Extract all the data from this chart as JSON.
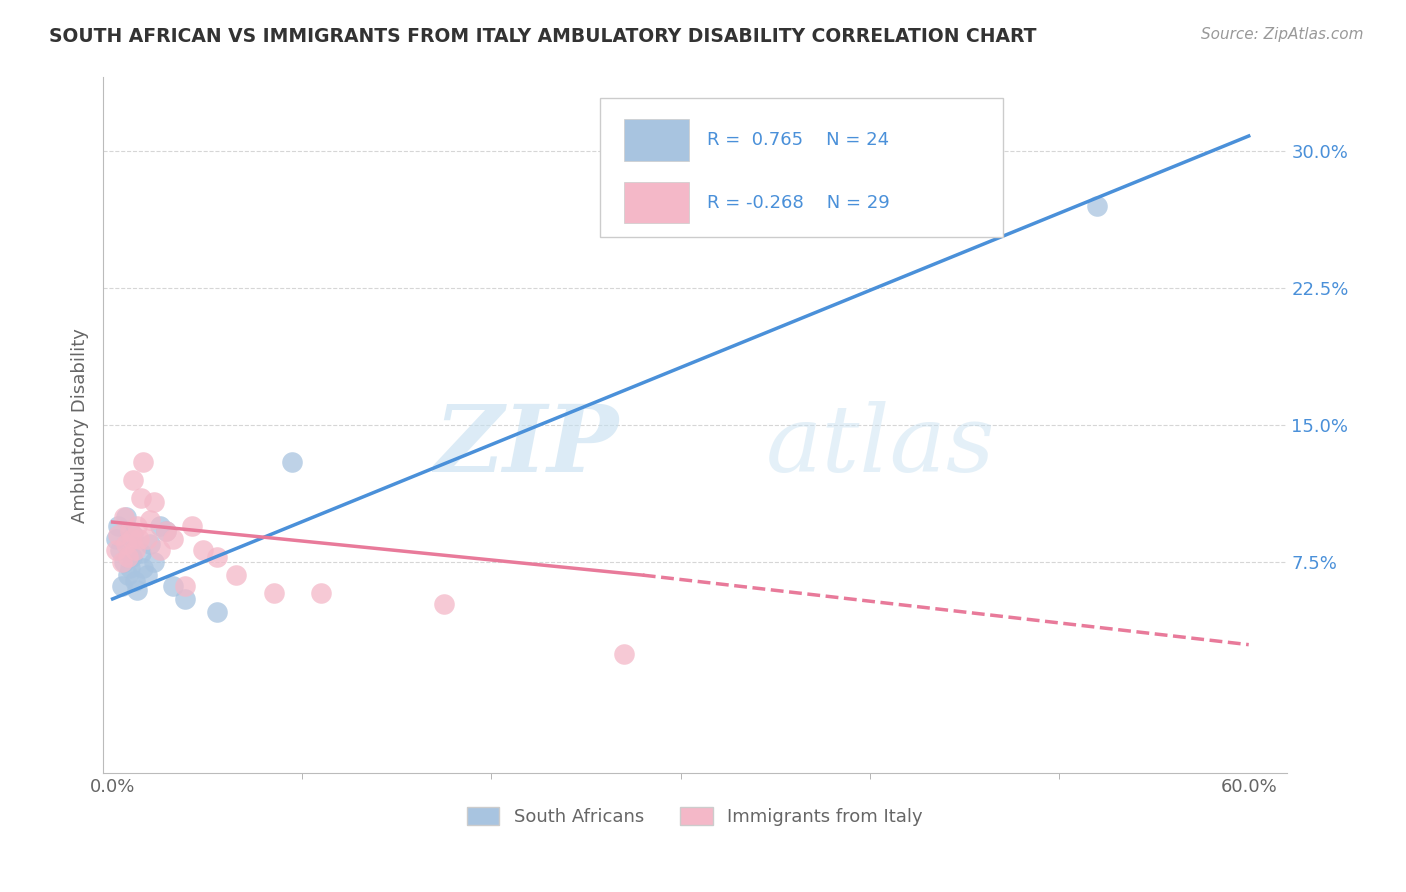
{
  "title": "SOUTH AFRICAN VS IMMIGRANTS FROM ITALY AMBULATORY DISABILITY CORRELATION CHART",
  "source": "Source: ZipAtlas.com",
  "xlabel": "",
  "ylabel": "Ambulatory Disability",
  "xlim": [
    -0.005,
    0.62
  ],
  "ylim": [
    -0.04,
    0.34
  ],
  "xticks_labeled": [
    0.0,
    0.6
  ],
  "xticklabels": [
    "0.0%",
    "60.0%"
  ],
  "xticks_minor": [
    0.1,
    0.2,
    0.3,
    0.4,
    0.5
  ],
  "yticks": [
    0.075,
    0.15,
    0.225,
    0.3
  ],
  "yticklabels": [
    "7.5%",
    "15.0%",
    "22.5%",
    "30.0%"
  ],
  "blue_color": "#a8c4e0",
  "pink_color": "#f4b8c8",
  "blue_line_color": "#4a90d9",
  "pink_line_color": "#e87a9a",
  "blue_R": 0.765,
  "blue_N": 24,
  "pink_R": -0.268,
  "pink_N": 29,
  "legend_label_blue": "South Africans",
  "legend_label_pink": "Immigrants from Italy",
  "watermark_zip": "ZIP",
  "watermark_atlas": "atlas",
  "background_color": "#ffffff",
  "grid_color": "#cccccc",
  "blue_scatter_x": [
    0.002,
    0.003,
    0.004,
    0.005,
    0.006,
    0.007,
    0.008,
    0.009,
    0.01,
    0.011,
    0.012,
    0.013,
    0.015,
    0.016,
    0.018,
    0.02,
    0.022,
    0.025,
    0.028,
    0.032,
    0.038,
    0.055,
    0.095,
    0.52
  ],
  "blue_scatter_y": [
    0.088,
    0.095,
    0.082,
    0.062,
    0.075,
    0.1,
    0.068,
    0.072,
    0.078,
    0.09,
    0.065,
    0.06,
    0.08,
    0.072,
    0.068,
    0.085,
    0.075,
    0.095,
    0.092,
    0.062,
    0.055,
    0.048,
    0.13,
    0.27
  ],
  "pink_scatter_x": [
    0.002,
    0.003,
    0.005,
    0.006,
    0.007,
    0.008,
    0.009,
    0.01,
    0.011,
    0.012,
    0.013,
    0.014,
    0.015,
    0.016,
    0.018,
    0.02,
    0.022,
    0.025,
    0.028,
    0.032,
    0.038,
    0.042,
    0.048,
    0.055,
    0.065,
    0.085,
    0.11,
    0.175,
    0.27
  ],
  "pink_scatter_y": [
    0.082,
    0.09,
    0.075,
    0.1,
    0.085,
    0.078,
    0.092,
    0.088,
    0.12,
    0.082,
    0.095,
    0.088,
    0.11,
    0.13,
    0.088,
    0.098,
    0.108,
    0.082,
    0.092,
    0.088,
    0.062,
    0.095,
    0.082,
    0.078,
    0.068,
    0.058,
    0.058,
    0.052,
    0.025
  ],
  "blue_line_x0": 0.0,
  "blue_line_y0": 0.055,
  "blue_line_x1": 0.6,
  "blue_line_y1": 0.308,
  "pink_line_x0": 0.0,
  "pink_line_y0": 0.097,
  "pink_line_x1_solid": 0.28,
  "pink_line_y1_solid": 0.068,
  "pink_line_x1_dashed": 0.6,
  "pink_line_y1_dashed": 0.03
}
